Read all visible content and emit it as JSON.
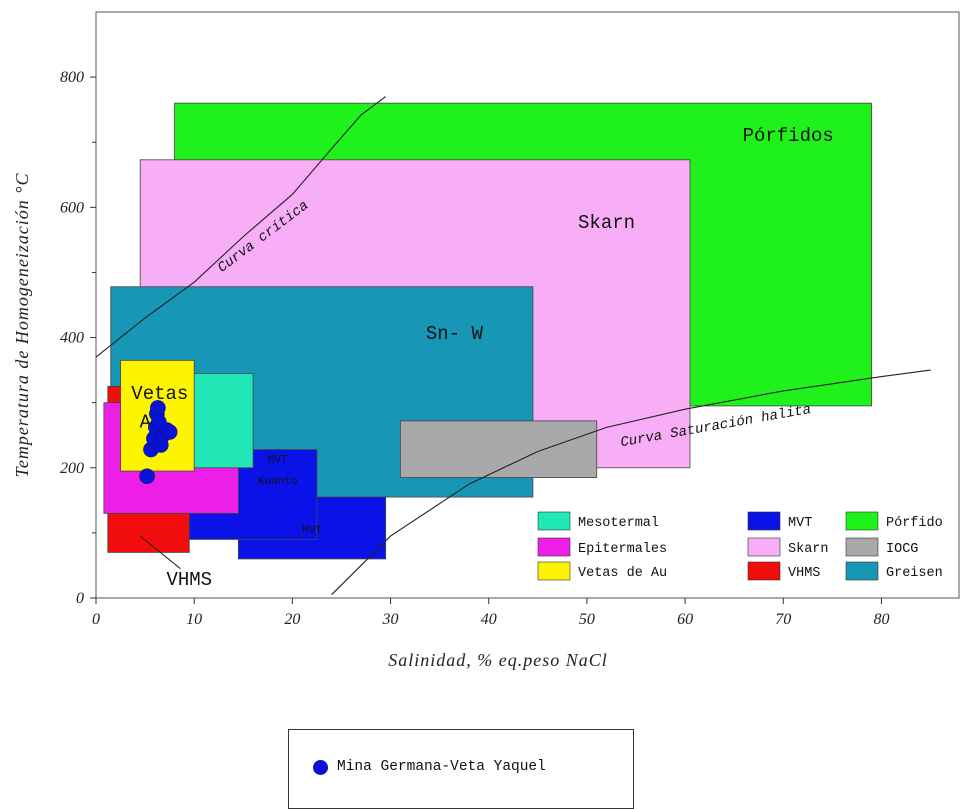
{
  "chart_data": {
    "type": "scatter",
    "title": "",
    "xlabel": "Salinidad, % eq.peso NaCl",
    "ylabel": "Temperatura de Homogeneización °C",
    "xlim": [
      0,
      88
    ],
    "ylim": [
      0,
      900
    ],
    "xticks": [
      0,
      10,
      20,
      30,
      40,
      50,
      60,
      70,
      80
    ],
    "yticks": [
      0,
      200,
      400,
      600,
      800
    ],
    "grid": false,
    "regions": [
      {
        "name": "Pórfido",
        "label": "Pórfidos",
        "color": "#1ef21a",
        "x": [
          8,
          79
        ],
        "y": [
          295,
          760
        ]
      },
      {
        "name": "Skarn",
        "label": "Skarn",
        "color": "#f7aef6",
        "x": [
          4.5,
          60.5
        ],
        "y": [
          200,
          673
        ]
      },
      {
        "name": "Greisen",
        "label": "Sn- W",
        "color": "#1796b5",
        "x": [
          1.5,
          44.5
        ],
        "y": [
          155,
          478
        ]
      },
      {
        "name": "IOCG",
        "label": "",
        "color": "#a9a9a9",
        "x": [
          31,
          51
        ],
        "y": [
          185,
          272
        ]
      },
      {
        "name": "MVT",
        "label": "MVT",
        "color": "#0a12e8",
        "x": [
          14.5,
          29.5
        ],
        "y": [
          60,
          155
        ]
      },
      {
        "name": "MVT",
        "label": "MVT Kuanto",
        "color": "#0a12e8",
        "x": [
          9.5,
          22.5
        ],
        "y": [
          90,
          228
        ]
      },
      {
        "name": "VHMS",
        "label": "",
        "color": "#f20d0d",
        "x": [
          1.2,
          9.5
        ],
        "y": [
          70,
          325
        ]
      },
      {
        "name": "Epitermales",
        "label": "",
        "color": "#ee1ee9",
        "x": [
          0.8,
          14.5
        ],
        "y": [
          130,
          300
        ]
      },
      {
        "name": "Mesotermal",
        "label": "",
        "color": "#22e8b8",
        "x": [
          4.5,
          16
        ],
        "y": [
          200,
          345
        ]
      },
      {
        "name": "Vetas de Au",
        "label": "Vetas Au",
        "color": "#fcf400",
        "x": [
          2.5,
          10
        ],
        "y": [
          195,
          365
        ]
      }
    ],
    "curves": [
      {
        "name": "Curva crítica",
        "points": [
          [
            0,
            370
          ],
          [
            5,
            430
          ],
          [
            10,
            485
          ],
          [
            15,
            555
          ],
          [
            20,
            620
          ],
          [
            24,
            690
          ],
          [
            27,
            742
          ],
          [
            29.5,
            770
          ]
        ]
      },
      {
        "name": "Curva Saturación halita",
        "points": [
          [
            24,
            5
          ],
          [
            30,
            95
          ],
          [
            38,
            175
          ],
          [
            45,
            225
          ],
          [
            52,
            262
          ],
          [
            60,
            290
          ],
          [
            70,
            318
          ],
          [
            80,
            340
          ],
          [
            85,
            350
          ]
        ]
      }
    ],
    "curve_annotations": [
      "VHMS"
    ],
    "legend": {
      "placement": "bottom-right",
      "entries": [
        {
          "label": "Mesotermal",
          "color": "#22e8b8"
        },
        {
          "label": "Epitermales",
          "color": "#ee1ee9"
        },
        {
          "label": "Vetas de Au",
          "color": "#fcf400"
        },
        {
          "label": "MVT",
          "color": "#0a12e8"
        },
        {
          "label": "Skarn",
          "color": "#f7aef6"
        },
        {
          "label": "VHMS",
          "color": "#f20d0d"
        },
        {
          "label": "Pórfido",
          "color": "#1ef21a"
        },
        {
          "label": "IOCG",
          "color": "#a9a9a9"
        },
        {
          "label": "Greisen",
          "color": "#1796b5"
        }
      ]
    },
    "series": [
      {
        "name": "Mina Germana-Veta Yaquel",
        "color": "#0a12d6",
        "points": [
          [
            5.2,
            187
          ],
          [
            5.6,
            228
          ],
          [
            5.9,
            245
          ],
          [
            6.1,
            262
          ],
          [
            6.2,
            283
          ],
          [
            6.3,
            292
          ],
          [
            6.4,
            270
          ],
          [
            6.6,
            235
          ],
          [
            6.8,
            250
          ],
          [
            7.2,
            258
          ],
          [
            7.5,
            255
          ]
        ]
      }
    ]
  },
  "samples_legend": {
    "label": "Mina Germana-Veta Yaquel",
    "marker_color": "#0a12d6"
  }
}
